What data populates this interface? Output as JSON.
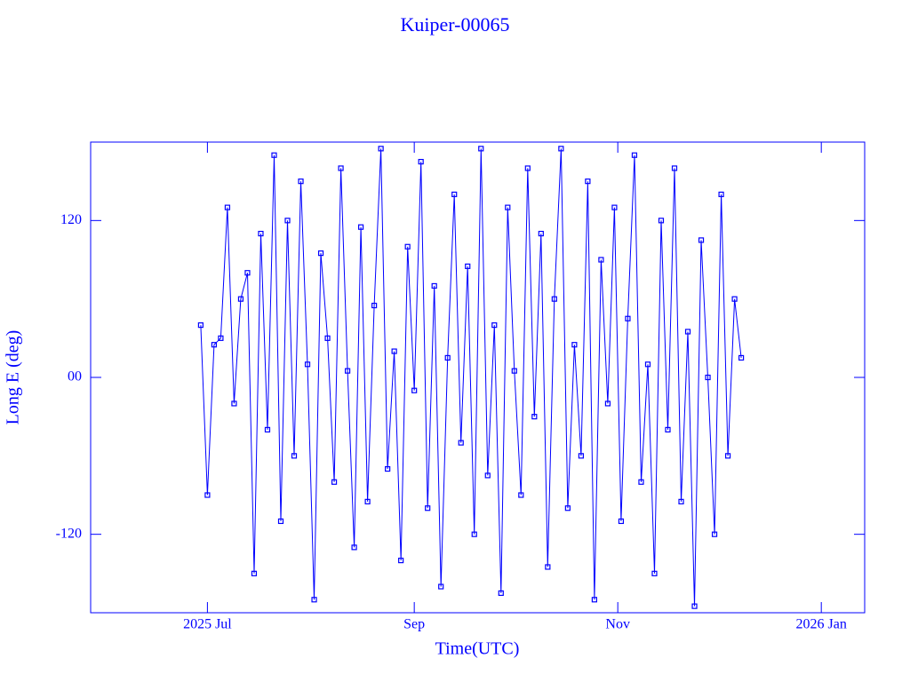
{
  "chart_data": {
    "type": "line",
    "title": "Kuiper-00065",
    "xlabel": "Time(UTC)",
    "ylabel": "Long E (deg)",
    "xlim": [
      "2025-05-27",
      "2026-01-14"
    ],
    "xticks": [
      {
        "value": "2025-07-01",
        "label": "2025 Jul"
      },
      {
        "value": "2025-09-01",
        "label": "Sep"
      },
      {
        "value": "2025-11-01",
        "label": "Nov"
      },
      {
        "value": "2026-01-01",
        "label": "2026 Jan"
      }
    ],
    "ylim": [
      -180,
      180
    ],
    "yticks": [
      -120,
      {
        "value": 0,
        "label": "00"
      },
      120
    ],
    "x": [
      "2025-06-29",
      "2025-07-01",
      "2025-07-03",
      "2025-07-05",
      "2025-07-07",
      "2025-07-09",
      "2025-07-11",
      "2025-07-13",
      "2025-07-15",
      "2025-07-17",
      "2025-07-19",
      "2025-07-21",
      "2025-07-23",
      "2025-07-25",
      "2025-07-27",
      "2025-07-29",
      "2025-07-31",
      "2025-08-02",
      "2025-08-04",
      "2025-08-06",
      "2025-08-08",
      "2025-08-10",
      "2025-08-12",
      "2025-08-14",
      "2025-08-16",
      "2025-08-18",
      "2025-08-20",
      "2025-08-22",
      "2025-08-24",
      "2025-08-26",
      "2025-08-28",
      "2025-08-30",
      "2025-09-01",
      "2025-09-03",
      "2025-09-05",
      "2025-09-07",
      "2025-09-09",
      "2025-09-11",
      "2025-09-13",
      "2025-09-15",
      "2025-09-17",
      "2025-09-19",
      "2025-09-21",
      "2025-09-23",
      "2025-09-25",
      "2025-09-27",
      "2025-09-29",
      "2025-10-01",
      "2025-10-03",
      "2025-10-05",
      "2025-10-07",
      "2025-10-09",
      "2025-10-11",
      "2025-10-13",
      "2025-10-15",
      "2025-10-17",
      "2025-10-19",
      "2025-10-21",
      "2025-10-23",
      "2025-10-25",
      "2025-10-27",
      "2025-10-29",
      "2025-10-31",
      "2025-11-02",
      "2025-11-04",
      "2025-11-06",
      "2025-11-08",
      "2025-11-10",
      "2025-11-12",
      "2025-11-14",
      "2025-11-16",
      "2025-11-18",
      "2025-11-20",
      "2025-11-22",
      "2025-11-24",
      "2025-11-26",
      "2025-11-28",
      "2025-11-30",
      "2025-12-02",
      "2025-12-04",
      "2025-12-06",
      "2025-12-08"
    ],
    "series": [
      {
        "color": "#0000ff",
        "values": [
          40,
          -90,
          25,
          30,
          130,
          -20,
          60,
          80,
          -150,
          110,
          -40,
          170,
          -110,
          120,
          -60,
          150,
          10,
          -170,
          95,
          30,
          -80,
          160,
          5,
          -130,
          115,
          -95,
          55,
          175,
          -70,
          20,
          -140,
          100,
          -10,
          165,
          -100,
          70,
          -160,
          15,
          140,
          -50,
          85,
          -120,
          175,
          -75,
          40,
          -165,
          130,
          5,
          -90,
          160,
          -30,
          110,
          -145,
          60,
          175,
          -100,
          25,
          -60,
          150,
          -170,
          90,
          -20,
          130,
          -110,
          45,
          170,
          -80,
          10,
          -150,
          120,
          -40,
          160,
          -95,
          35,
          -175,
          105,
          0,
          -120,
          140,
          -60,
          60,
          15
        ]
      }
    ]
  }
}
